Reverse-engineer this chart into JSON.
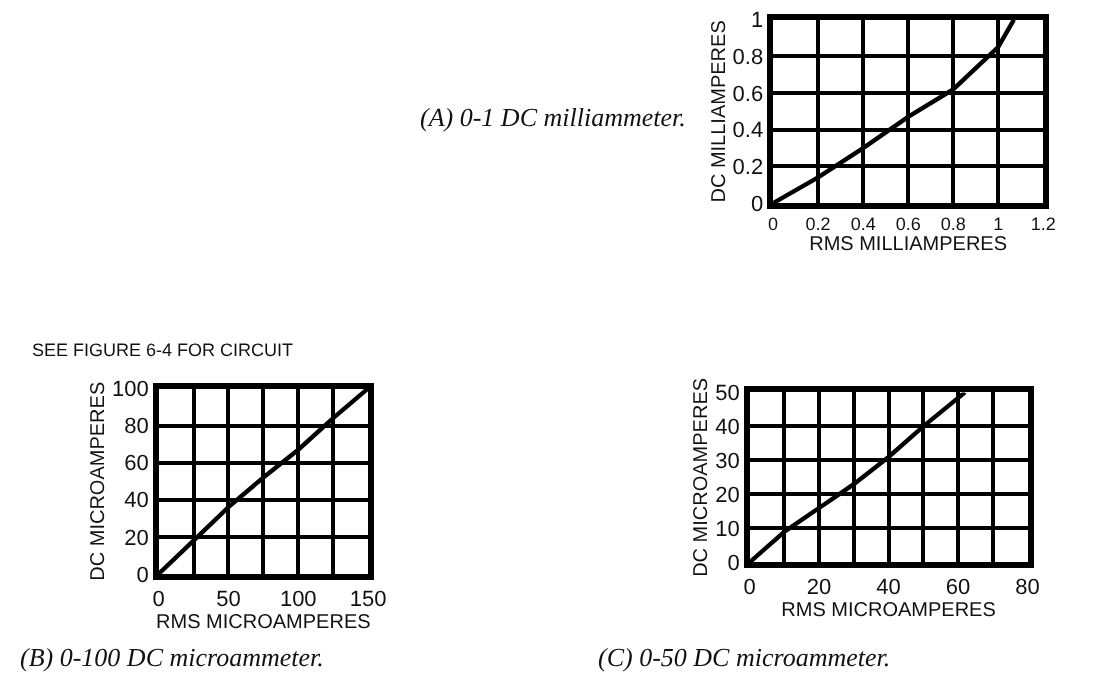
{
  "chart_data": [
    {
      "type": "line",
      "title": "(A) 0-1 DC milliammeter.",
      "xlabel": "RMS MILLIAMPERES",
      "ylabel": "DC MILLIAMPERES",
      "series": [
        {
          "color": "#000000",
          "x": [
            0,
            0.2,
            0.4,
            0.6,
            0.8,
            1.0,
            1.07
          ],
          "values": [
            0,
            0.14,
            0.3,
            0.47,
            0.62,
            0.85,
            1.0
          ]
        }
      ],
      "xlim": [
        0,
        1.2
      ],
      "ylim": [
        0,
        1
      ],
      "xticks": [
        0,
        0.2,
        0.4,
        0.6,
        0.8,
        1,
        1.2
      ],
      "yticks": [
        0,
        0.2,
        0.4,
        0.6,
        0.8,
        1
      ],
      "grid": true
    },
    {
      "type": "line",
      "title": "(B) 0-100 DC microammeter.",
      "subtitle": "SEE FIGURE 6-4 FOR CIRCUIT",
      "xlabel": "RMS MICROAMPERES",
      "ylabel": "DC MICROAMPERES",
      "series": [
        {
          "color": "#000000",
          "x": [
            0,
            25,
            50,
            75,
            100,
            125,
            150
          ],
          "values": [
            0,
            18,
            36,
            52,
            67,
            84,
            100
          ]
        }
      ],
      "xlim": [
        0,
        150
      ],
      "ylim": [
        0,
        100
      ],
      "xticks": [
        0,
        {
          "value": 25,
          "label": null
        },
        50,
        {
          "value": 75,
          "label": null
        },
        100,
        {
          "value": 125,
          "label": null
        },
        150
      ],
      "yticks": [
        0,
        20,
        40,
        60,
        80,
        100
      ],
      "grid": true
    },
    {
      "type": "line",
      "title": "(C) 0-50 DC microammeter.",
      "xlabel": "RMS MICROAMPERES",
      "ylabel": "DC MICROAMPERES",
      "series": [
        {
          "color": "#000000",
          "x": [
            0,
            10,
            20,
            30,
            40,
            50,
            62
          ],
          "values": [
            0,
            9,
            16,
            23,
            31,
            40,
            50
          ]
        }
      ],
      "xlim": [
        0,
        80
      ],
      "ylim": [
        0,
        50
      ],
      "xticks": [
        0,
        {
          "value": 10,
          "label": null
        },
        20,
        {
          "value": 30,
          "label": null
        },
        40,
        {
          "value": 50,
          "label": null
        },
        60,
        {
          "value": 70,
          "label": null
        },
        80
      ],
      "yticks": [
        0,
        10,
        20,
        30,
        40,
        50
      ],
      "grid": true
    }
  ]
}
